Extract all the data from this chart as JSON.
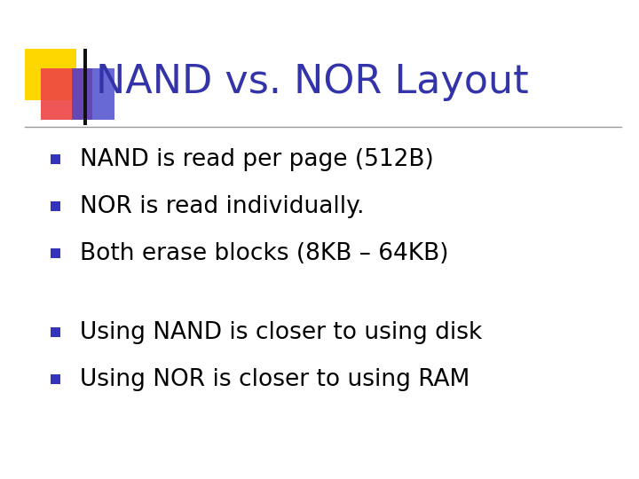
{
  "title": "NAND vs. NOR Layout",
  "title_color": "#3333AA",
  "title_fontsize": 32,
  "background_color": "#FFFFFF",
  "bullet_color": "#000000",
  "bullet_fontsize": 19,
  "bullets_top": [
    "NAND is read per page (512B)",
    "NOR is read individually.",
    "Both erase blocks (8KB – 64KB)"
  ],
  "bullets_bottom": [
    "Using NAND is closer to using disk",
    "Using NOR is closer to using RAM"
  ],
  "bullet_square_color": "#3333BB",
  "logo_yellow": "#FFD700",
  "logo_red": "#EE4444",
  "logo_blue_rect": "#3333AA",
  "logo_blue_square": "#4444CC",
  "line_color": "#999999"
}
